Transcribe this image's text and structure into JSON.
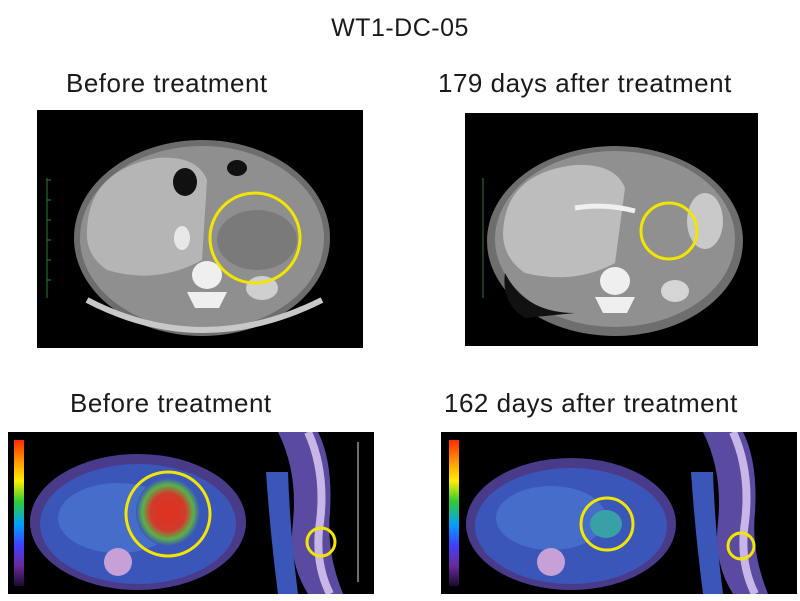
{
  "figure": {
    "title": "WT1-DC-05",
    "ct_before_label": "Before treatment",
    "ct_after_label": "179 days after treatment",
    "pet_before_label": "Before treatment",
    "pet_after_label": "162 days after treatment"
  },
  "colors": {
    "background": "#ffffff",
    "lesion_circle": "#f2e600",
    "pet_hotspot": "#e0301e",
    "pet_background_tissue": "#3a56b8",
    "scan_background": "#000000"
  },
  "colorbar": {
    "stops": [
      "#ff2a00",
      "#ff9900",
      "#ffee00",
      "#33cc33",
      "#00a0ff",
      "#4040ff",
      "#6a2a9a",
      "#1a0a30"
    ]
  }
}
